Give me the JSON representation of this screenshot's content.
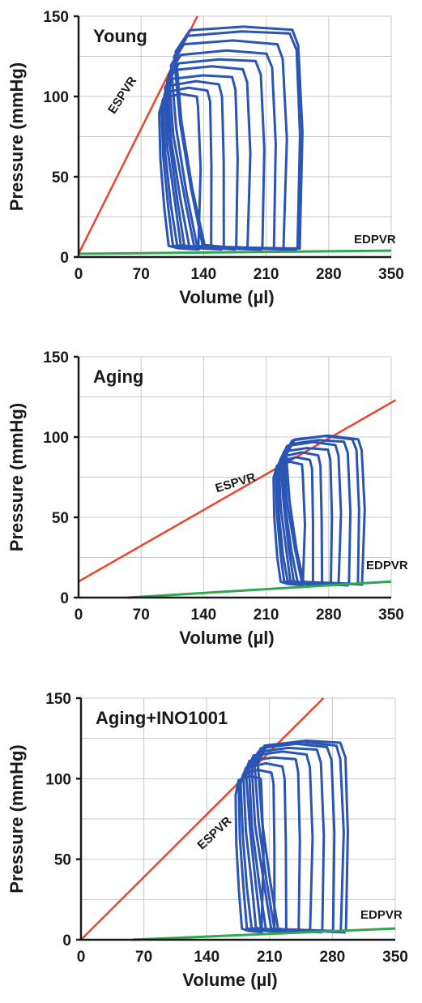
{
  "chart_data": [
    {
      "type": "line",
      "title": "Young",
      "xlabel": "Volume (µl)",
      "ylabel": "Pressure (mmHg)",
      "xlim": [
        0,
        350
      ],
      "ylim": [
        0,
        150
      ],
      "x_ticks": [
        "0",
        "70",
        "140",
        "210",
        "280",
        "350"
      ],
      "y_ticks": [
        "0",
        "50",
        "100",
        "150"
      ],
      "grid": true,
      "colors": {
        "espvr": "#e8452c",
        "edpvr": "#2fa84f",
        "loops": "#2a55b5"
      },
      "espvr": {
        "label": "ESPVR",
        "x": [
          0,
          133
        ],
        "y": [
          2,
          150
        ]
      },
      "edpvr": {
        "label": "EDPVR",
        "x": [
          0,
          350
        ],
        "y": [
          2,
          4
        ]
      },
      "loops": [
        {
          "esv": 90,
          "edv": 135,
          "ped": 5,
          "pmax": 100
        },
        {
          "esv": 92,
          "edv": 148,
          "ped": 5,
          "pmax": 104
        },
        {
          "esv": 94,
          "edv": 162,
          "ped": 5,
          "pmax": 108
        },
        {
          "esv": 96,
          "edv": 176,
          "ped": 5,
          "pmax": 112
        },
        {
          "esv": 97,
          "edv": 190,
          "ped": 5,
          "pmax": 117
        },
        {
          "esv": 99,
          "edv": 205,
          "ped": 5,
          "pmax": 122
        },
        {
          "esv": 101,
          "edv": 218,
          "ped": 5,
          "pmax": 127
        },
        {
          "esv": 103,
          "edv": 230,
          "ped": 5,
          "pmax": 133
        },
        {
          "esv": 106,
          "edv": 245,
          "ped": 5,
          "pmax": 139
        },
        {
          "esv": 108,
          "edv": 248,
          "ped": 5,
          "pmax": 142
        }
      ]
    },
    {
      "type": "line",
      "title": "Aging",
      "xlabel": "Volume (µl)",
      "ylabel": "Pressure (mmHg)",
      "xlim": [
        0,
        350
      ],
      "ylim": [
        0,
        150
      ],
      "x_ticks": [
        "0",
        "70",
        "140",
        "210",
        "280",
        "350"
      ],
      "y_ticks": [
        "0",
        "50",
        "100",
        "150"
      ],
      "grid": true,
      "colors": {
        "espvr": "#e8452c",
        "edpvr": "#2fa84f",
        "loops": "#2a55b5"
      },
      "espvr": {
        "label": "ESPVR",
        "x": [
          0,
          355
        ],
        "y": [
          10,
          123
        ]
      },
      "edpvr": {
        "label": "EDPVR",
        "x": [
          55,
          350
        ],
        "y": [
          0,
          10
        ]
      },
      "loops": [
        {
          "esv": 218,
          "edv": 252,
          "ped": 8,
          "pmax": 83
        },
        {
          "esv": 220,
          "edv": 262,
          "ped": 8,
          "pmax": 86
        },
        {
          "esv": 222,
          "edv": 272,
          "ped": 8,
          "pmax": 89
        },
        {
          "esv": 224,
          "edv": 282,
          "ped": 8,
          "pmax": 92
        },
        {
          "esv": 226,
          "edv": 292,
          "ped": 8,
          "pmax": 95
        },
        {
          "esv": 228,
          "edv": 302,
          "ped": 8,
          "pmax": 97
        },
        {
          "esv": 230,
          "edv": 312,
          "ped": 8,
          "pmax": 99
        },
        {
          "esv": 232,
          "edv": 318,
          "ped": 8,
          "pmax": 99
        }
      ]
    },
    {
      "type": "line",
      "title": "Aging+INO1001",
      "xlabel": "Volume (µl)",
      "ylabel": "Pressure (mmHg)",
      "xlim": [
        0,
        350
      ],
      "ylim": [
        0,
        150
      ],
      "x_ticks": [
        "0",
        "70",
        "140",
        "210",
        "280",
        "350"
      ],
      "y_ticks": [
        "0",
        "50",
        "100",
        "150"
      ],
      "grid": true,
      "colors": {
        "espvr": "#e8452c",
        "edpvr": "#2fa84f",
        "loops": "#2a55b5"
      },
      "espvr": {
        "label": "ESPVR",
        "x": [
          0,
          270
        ],
        "y": [
          0,
          150
        ]
      },
      "edpvr": {
        "label": "EDPVR",
        "x": [
          57,
          350
        ],
        "y": [
          0,
          7
        ]
      },
      "loops": [
        {
          "esv": 172,
          "edv": 202,
          "ped": 5,
          "pmax": 100
        },
        {
          "esv": 175,
          "edv": 215,
          "ped": 5,
          "pmax": 104
        },
        {
          "esv": 178,
          "edv": 228,
          "ped": 5,
          "pmax": 108
        },
        {
          "esv": 181,
          "edv": 242,
          "ped": 5,
          "pmax": 112
        },
        {
          "esv": 184,
          "edv": 256,
          "ped": 5,
          "pmax": 115
        },
        {
          "esv": 187,
          "edv": 268,
          "ped": 5,
          "pmax": 118
        },
        {
          "esv": 190,
          "edv": 280,
          "ped": 5,
          "pmax": 120
        },
        {
          "esv": 193,
          "edv": 290,
          "ped": 5,
          "pmax": 121
        },
        {
          "esv": 196,
          "edv": 295,
          "ped": 5,
          "pmax": 122
        }
      ]
    }
  ]
}
